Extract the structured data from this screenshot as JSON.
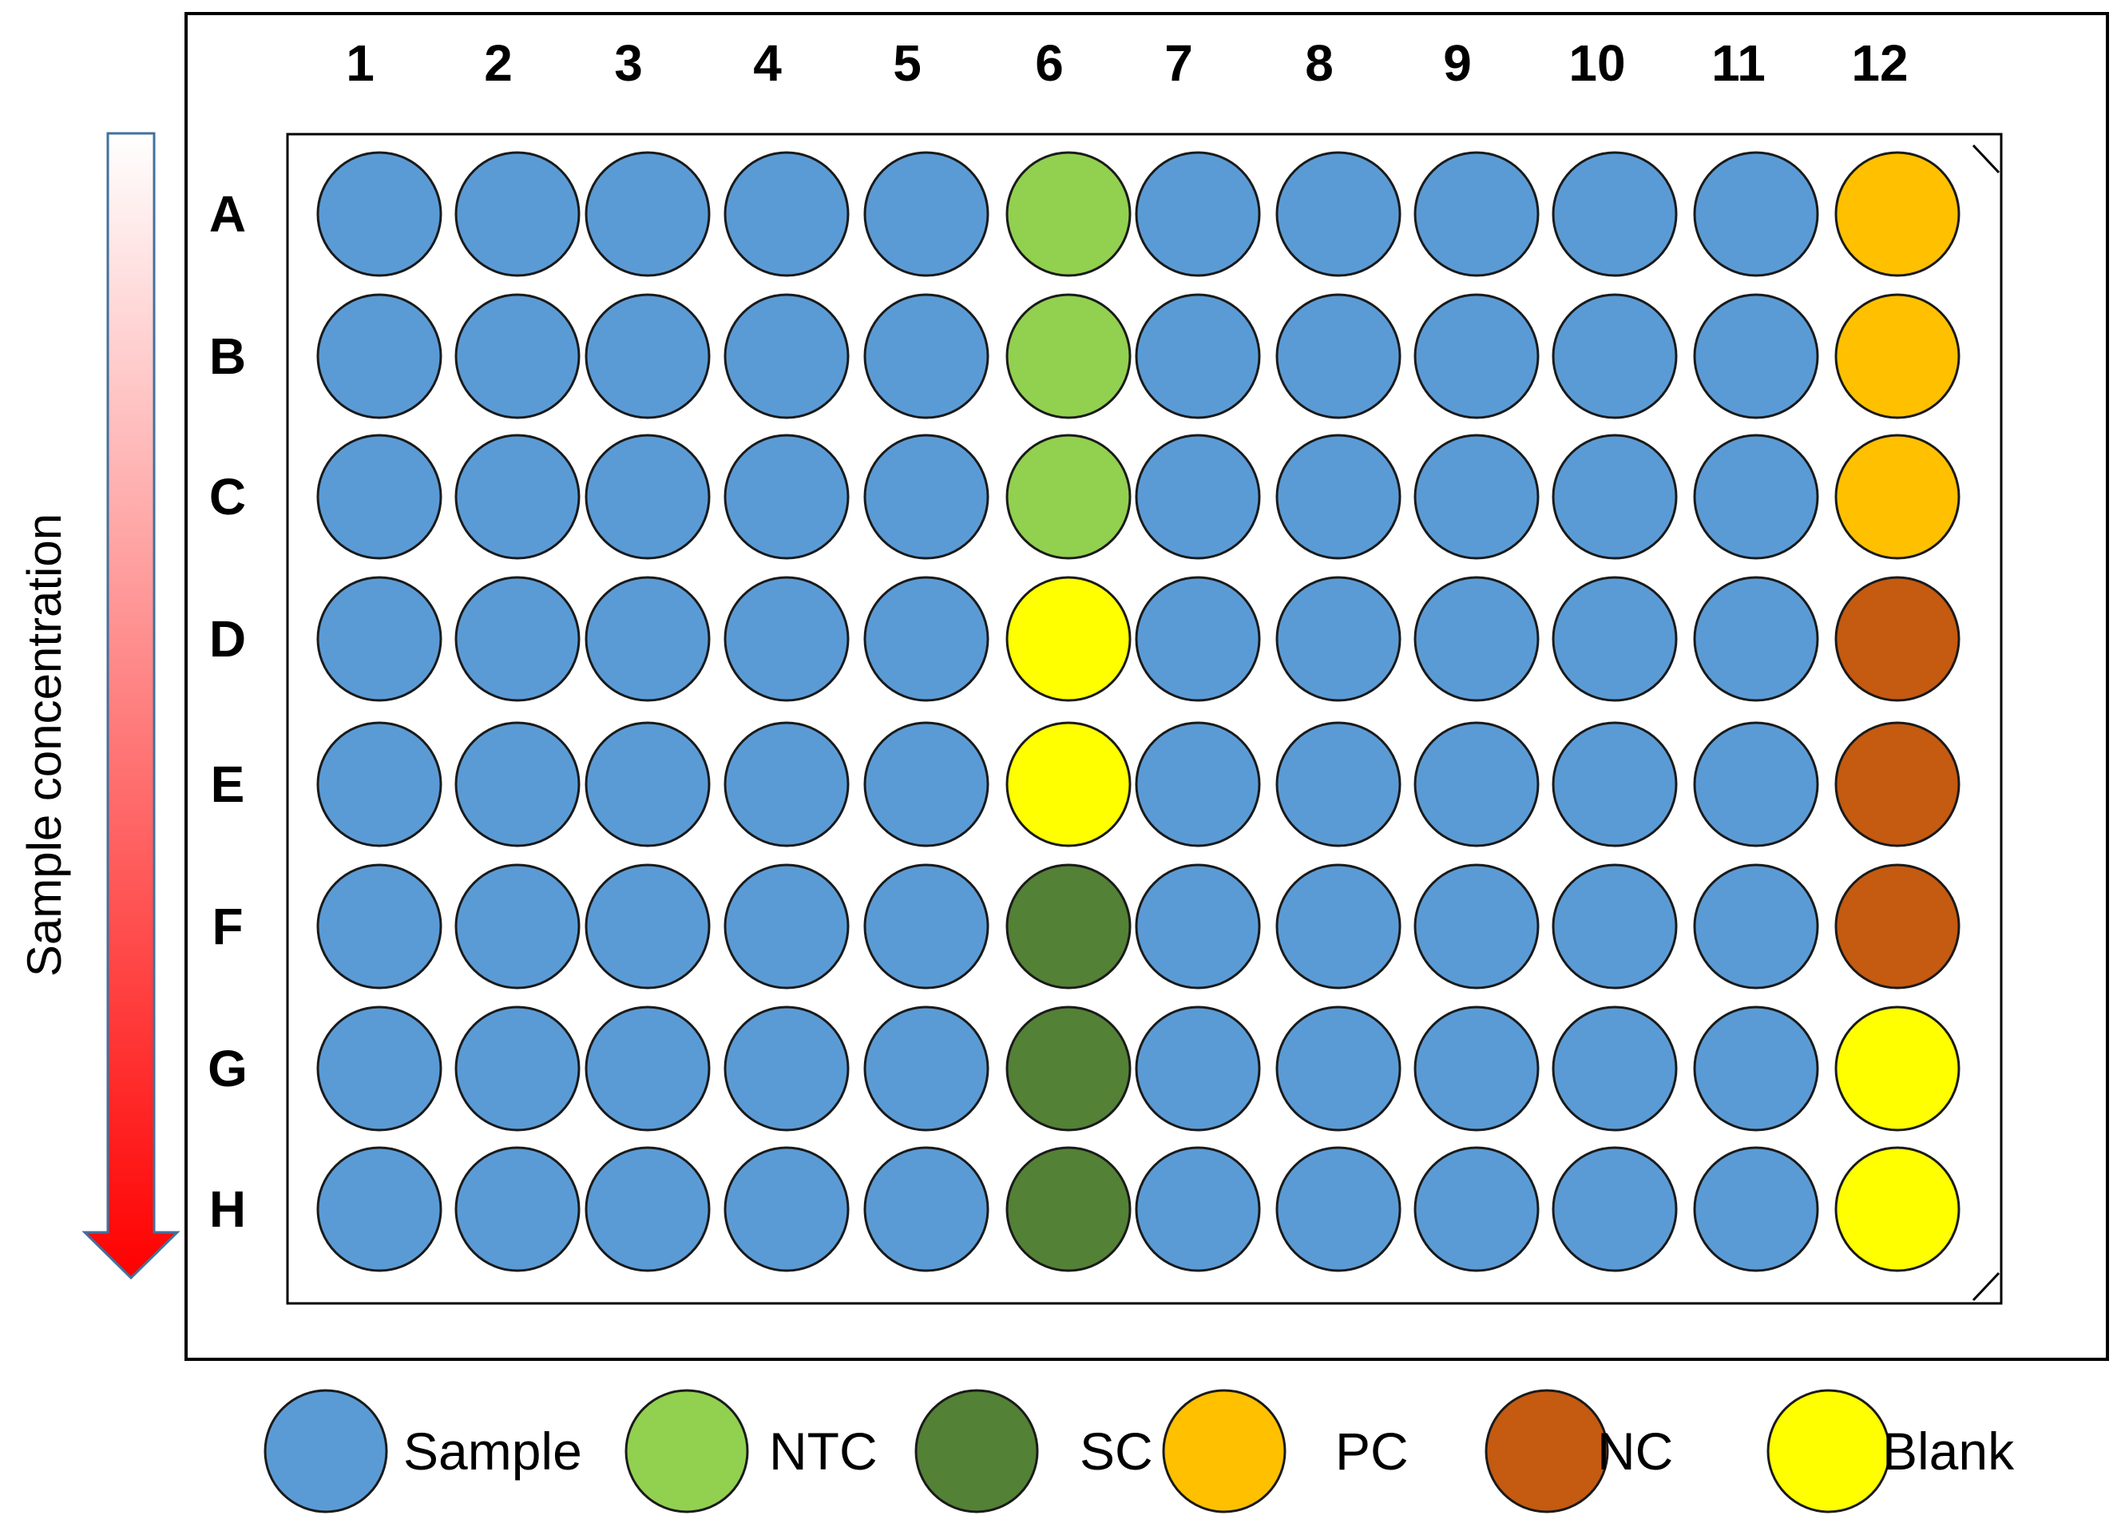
{
  "plate": {
    "columns": [
      "1",
      "2",
      "3",
      "4",
      "5",
      "6",
      "7",
      "8",
      "9",
      "10",
      "11",
      "12"
    ],
    "rows": [
      "A",
      "B",
      "C",
      "D",
      "E",
      "F",
      "G",
      "H"
    ],
    "gradient_label": "Sample concentration",
    "layout": [
      [
        "Sample",
        "Sample",
        "Sample",
        "Sample",
        "Sample",
        "NTC",
        "Sample",
        "Sample",
        "Sample",
        "Sample",
        "Sample",
        "PC"
      ],
      [
        "Sample",
        "Sample",
        "Sample",
        "Sample",
        "Sample",
        "NTC",
        "Sample",
        "Sample",
        "Sample",
        "Sample",
        "Sample",
        "PC"
      ],
      [
        "Sample",
        "Sample",
        "Sample",
        "Sample",
        "Sample",
        "NTC",
        "Sample",
        "Sample",
        "Sample",
        "Sample",
        "Sample",
        "PC"
      ],
      [
        "Sample",
        "Sample",
        "Sample",
        "Sample",
        "Sample",
        "Blank",
        "Sample",
        "Sample",
        "Sample",
        "Sample",
        "Sample",
        "NC"
      ],
      [
        "Sample",
        "Sample",
        "Sample",
        "Sample",
        "Sample",
        "Blank",
        "Sample",
        "Sample",
        "Sample",
        "Sample",
        "Sample",
        "NC"
      ],
      [
        "Sample",
        "Sample",
        "Sample",
        "Sample",
        "Sample",
        "SC",
        "Sample",
        "Sample",
        "Sample",
        "Sample",
        "Sample",
        "NC"
      ],
      [
        "Sample",
        "Sample",
        "Sample",
        "Sample",
        "Sample",
        "SC",
        "Sample",
        "Sample",
        "Sample",
        "Sample",
        "Sample",
        "Blank"
      ],
      [
        "Sample",
        "Sample",
        "Sample",
        "Sample",
        "Sample",
        "SC",
        "Sample",
        "Sample",
        "Sample",
        "Sample",
        "Sample",
        "Blank"
      ]
    ]
  },
  "legend": [
    {
      "key": "Sample",
      "label": "Sample",
      "color": "#5b9bd5"
    },
    {
      "key": "NTC",
      "label": "NTC",
      "color": "#92d050"
    },
    {
      "key": "SC",
      "label": "SC",
      "color": "#538135"
    },
    {
      "key": "PC",
      "label": "PC",
      "color": "#ffc000"
    },
    {
      "key": "NC",
      "label": "NC",
      "color": "#c55a11"
    },
    {
      "key": "Blank",
      "label": "Blank",
      "color": "#ffff00"
    }
  ],
  "colors": {
    "gradient_top": "#ffffff",
    "gradient_bottom": "#ff0000",
    "arrow_outline": "#41719c"
  }
}
